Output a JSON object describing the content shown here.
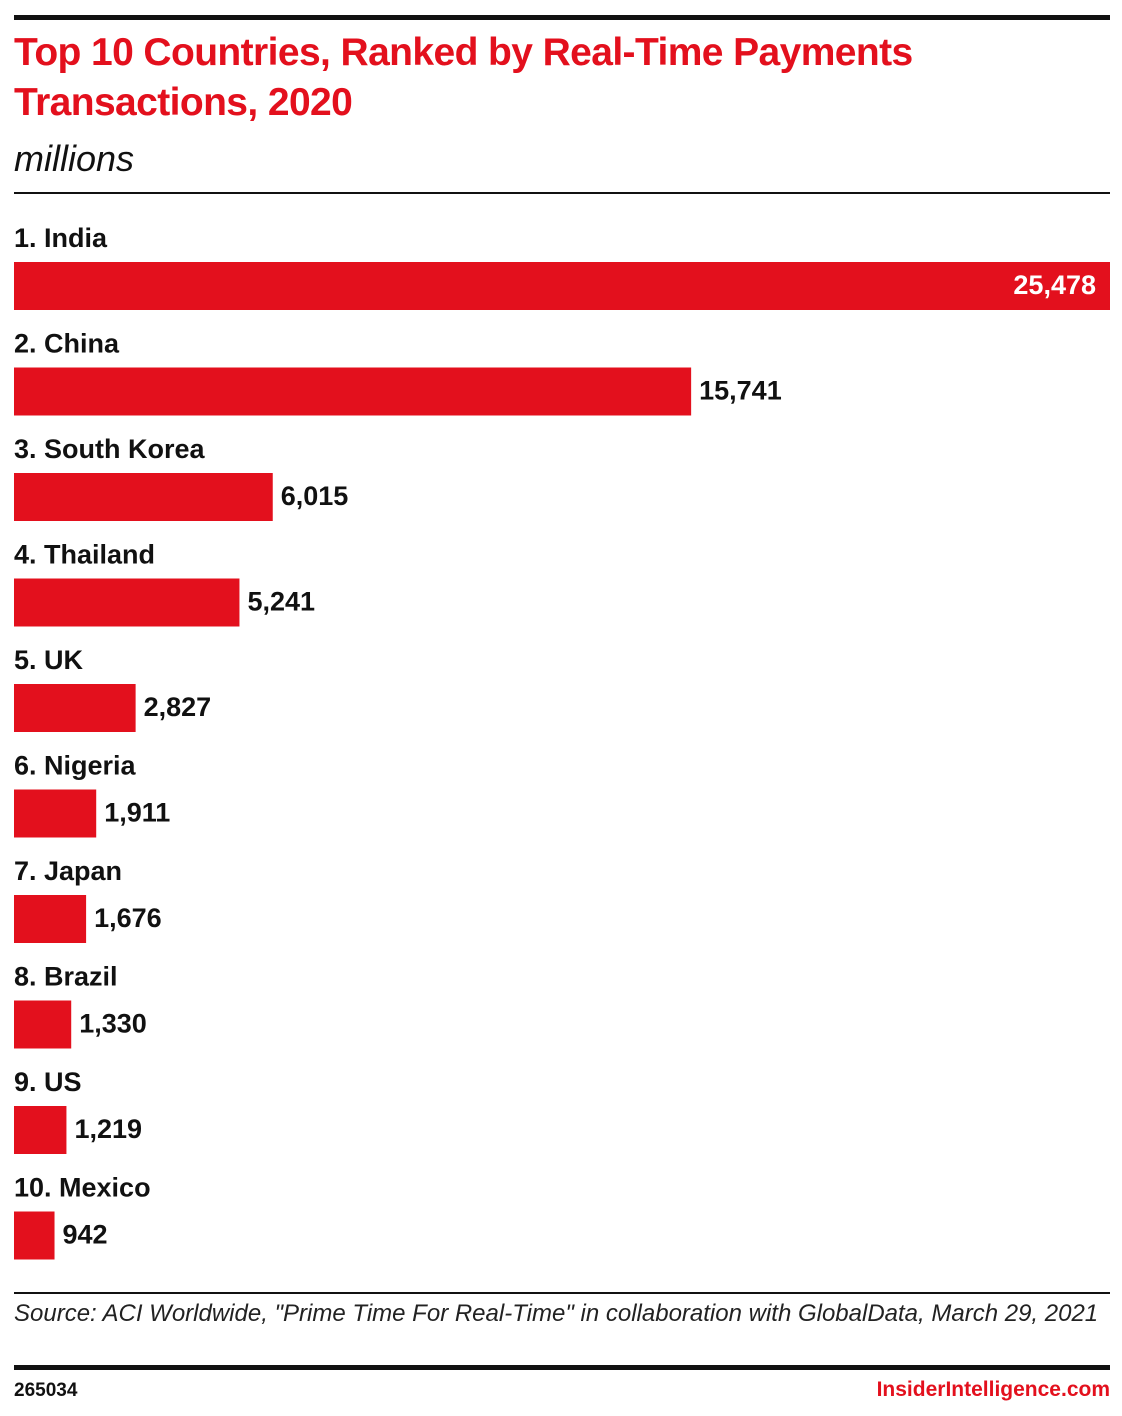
{
  "chart_data": {
    "type": "bar",
    "orientation": "horizontal",
    "title": "Top 10 Countries, Ranked by Real-Time Payments Transactions, 2020",
    "subtitle": "millions",
    "categories": [
      "1. India",
      "2. China",
      "3. South Korea",
      "4. Thailand",
      "5. UK",
      "6. Nigeria",
      "7. Japan",
      "8. Brazil",
      "9. US",
      "10. Mexico"
    ],
    "values": [
      25478,
      15741,
      6015,
      5241,
      2827,
      1911,
      1676,
      1330,
      1219,
      942
    ],
    "value_labels": [
      "25,478",
      "15,741",
      "6,015",
      "5,241",
      "2,827",
      "1,911",
      "1,676",
      "1,330",
      "1,219",
      "942"
    ],
    "color": "#e3101d",
    "source": "Source: ACI Worldwide, \"Prime Time For Real-Time\" in collaboration with GlobalData, March 29, 2021",
    "chart_id": "265034",
    "brand": "InsiderIntelligence.com"
  }
}
